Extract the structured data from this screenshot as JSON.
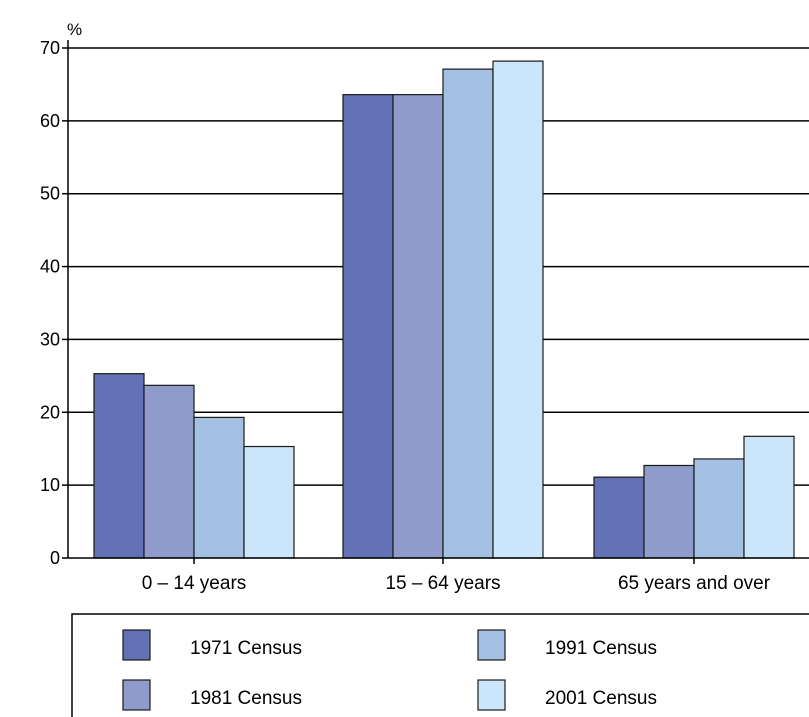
{
  "chart_data": {
    "type": "bar",
    "ylabel": "%",
    "ylim": [
      0,
      70
    ],
    "yticks": [
      0,
      10,
      20,
      30,
      40,
      50,
      60,
      70
    ],
    "grid": true,
    "legend_position": "bottom",
    "categories": [
      "0 – 14 years",
      "15 – 64 years",
      "65 years and over"
    ],
    "series": [
      {
        "name": "1971 Census",
        "color": "#6272b4",
        "values": [
          25.3,
          63.6,
          11.1
        ]
      },
      {
        "name": "1981 Census",
        "color": "#8e9bcb",
        "values": [
          23.7,
          63.6,
          12.7
        ]
      },
      {
        "name": "1991 Census",
        "color": "#a4c1e3",
        "values": [
          19.3,
          67.1,
          13.6
        ]
      },
      {
        "name": "2001 Census",
        "color": "#cbe6fa",
        "values": [
          15.3,
          68.2,
          16.7
        ]
      }
    ]
  }
}
